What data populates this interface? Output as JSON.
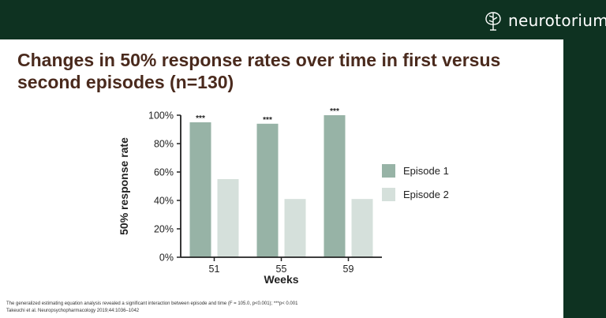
{
  "header": {
    "brand": "neurotorium",
    "logo_icon": "brain-tree-icon",
    "background": "#0e3221"
  },
  "title": "Changes in 50% response rates over time in first versus second episodes (n=130)",
  "chart_data": {
    "type": "bar",
    "categories": [
      "51",
      "55",
      "59"
    ],
    "series": [
      {
        "name": "Episode 1",
        "values": [
          95,
          94,
          100
        ],
        "color": "#97b3a6"
      },
      {
        "name": "Episode 2",
        "values": [
          55,
          41,
          41
        ],
        "color": "#d5e0db"
      }
    ],
    "significance": [
      "***",
      "***",
      "***"
    ],
    "xlabel": "Weeks",
    "ylabel": "50% response rate",
    "ylim": [
      0,
      100
    ],
    "yticks": [
      0,
      20,
      40,
      60,
      80,
      100
    ],
    "ytick_labels": [
      "0%",
      "20%",
      "40%",
      "60%",
      "80%",
      "100%"
    ],
    "grid": false,
    "legend_position": "right"
  },
  "footnotes": [
    "The generalized estimating equation analysis revealed a significant interaction between episode and time (F = 105.0, p<0.001); ***p< 0.001",
    "Takeuchi et al. Neuropsychopharmacology 2019;44:1036–1042"
  ]
}
